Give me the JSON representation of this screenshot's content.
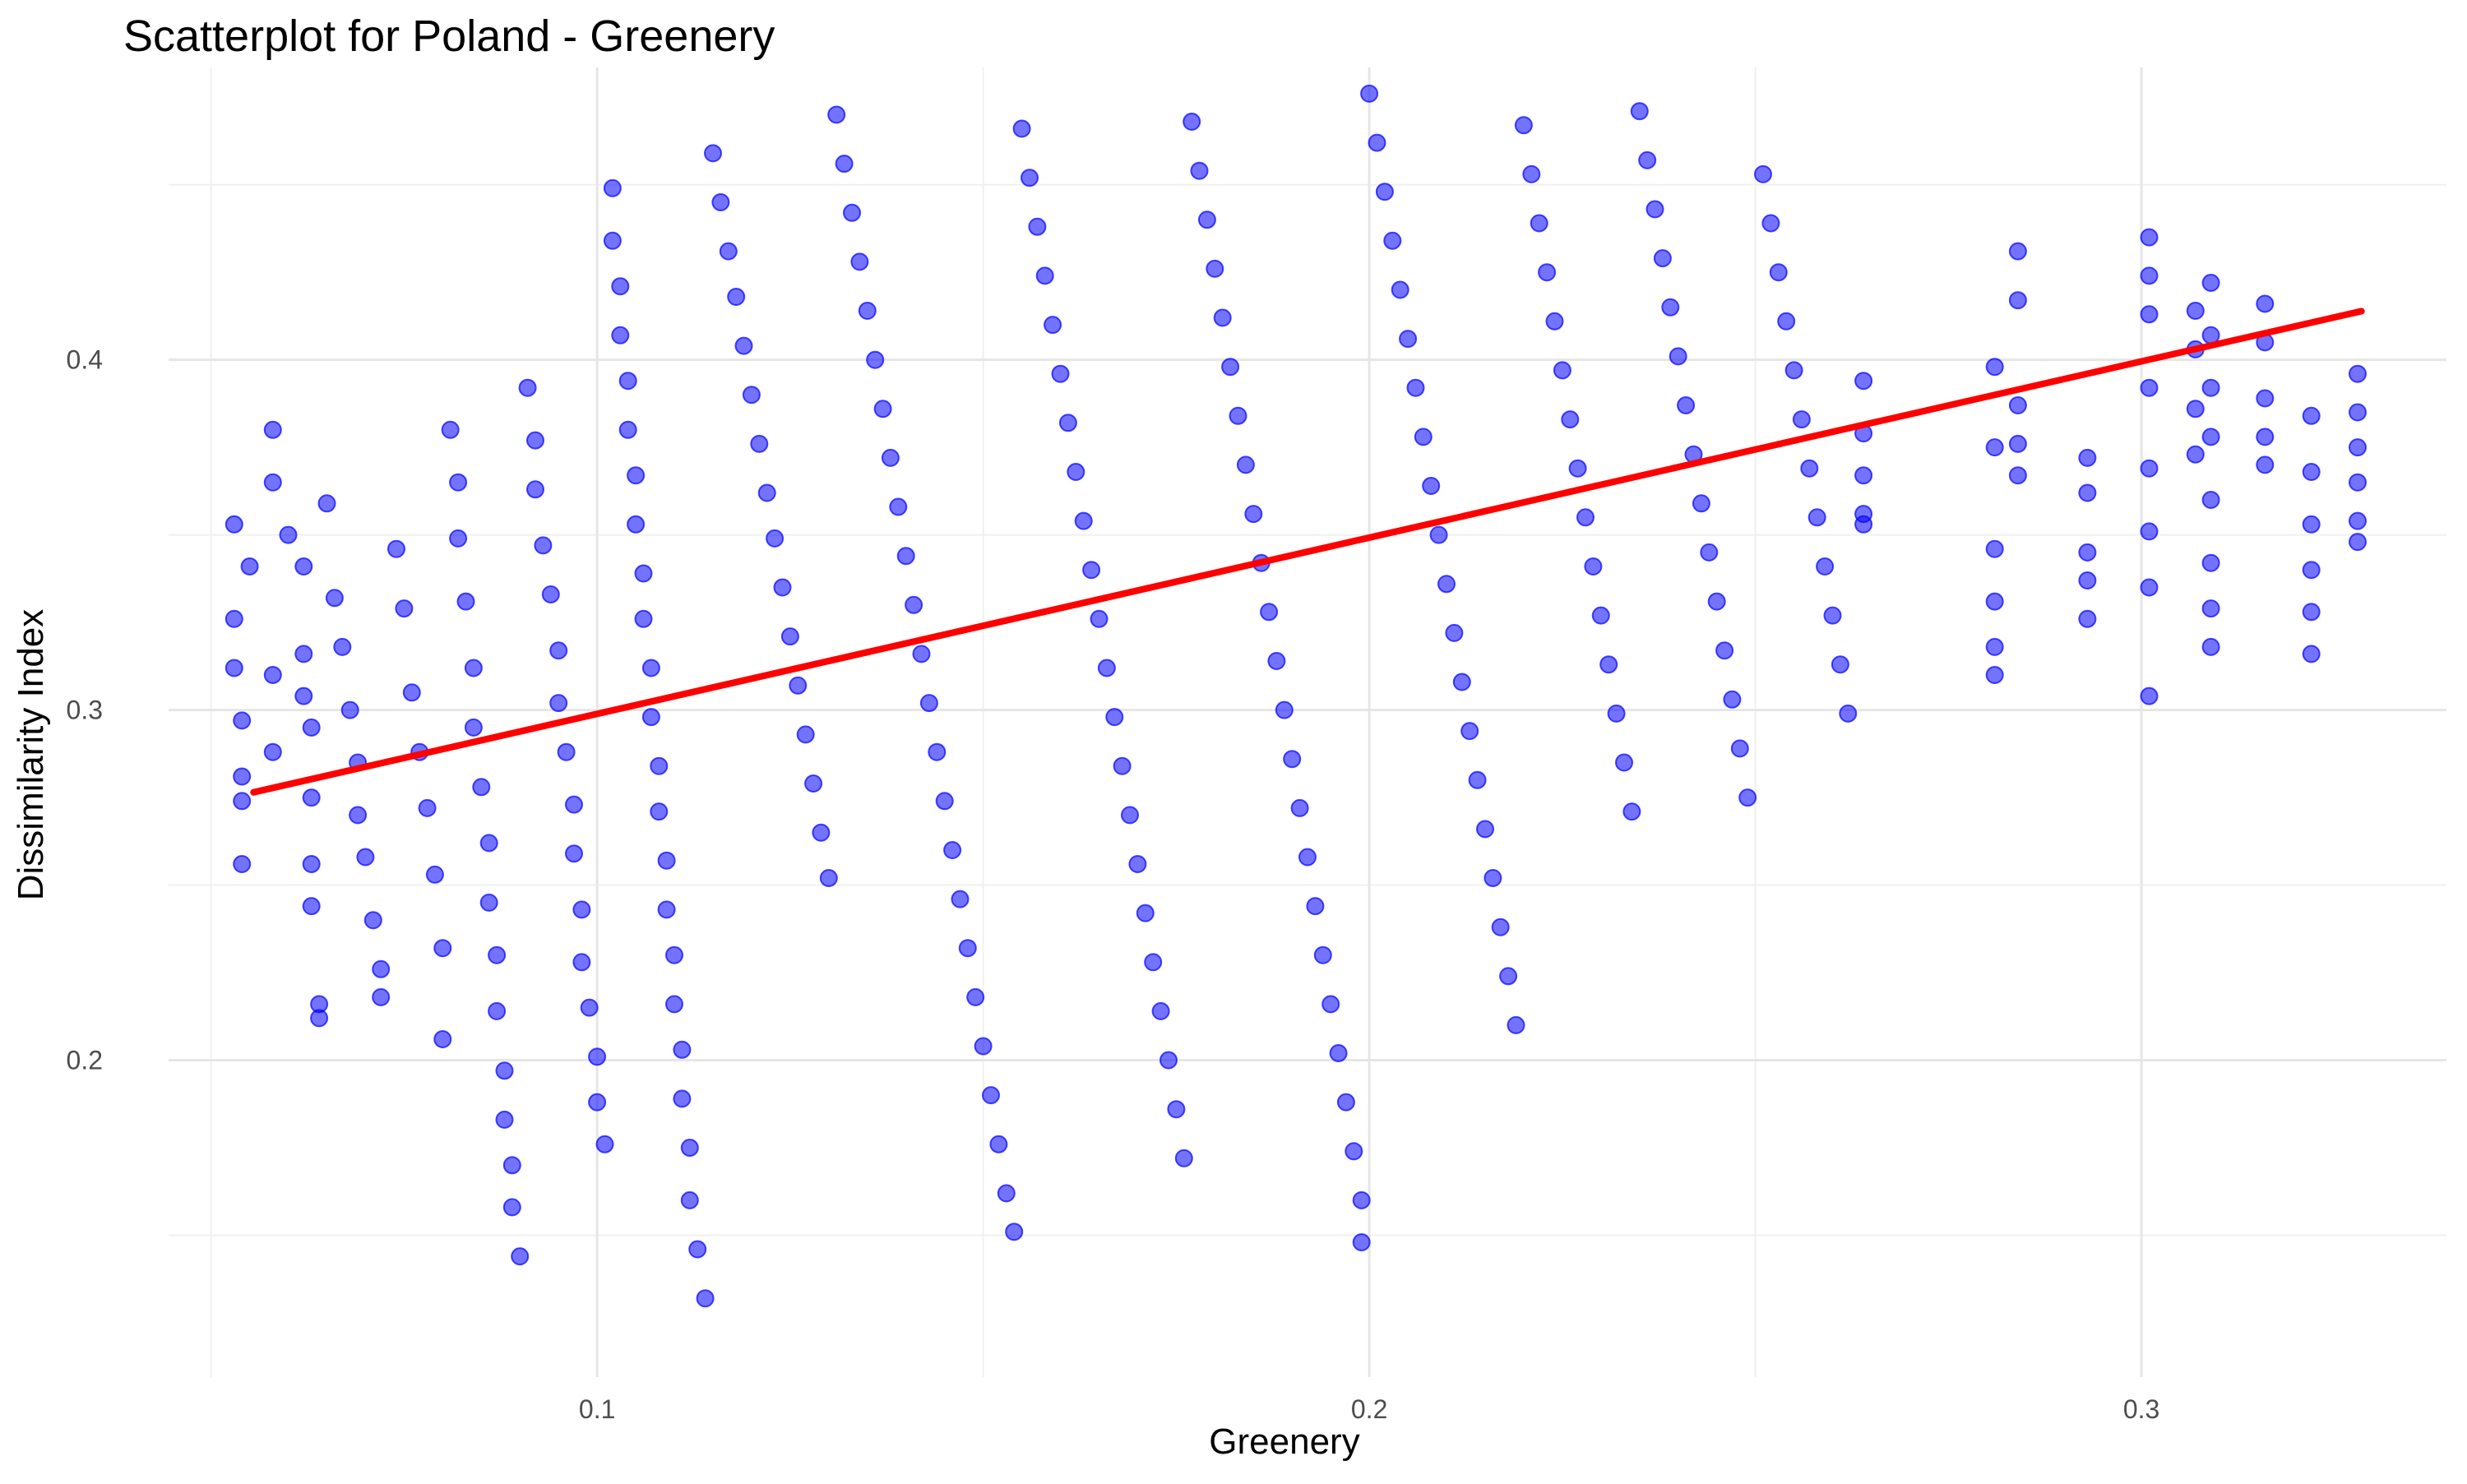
{
  "chart_data": {
    "type": "scatter",
    "title": "Scatterplot for Poland - Greenery",
    "xlabel": "Greenery",
    "ylabel": "Dissimilarity Index",
    "xlim": [
      0.0445,
      0.3395
    ],
    "ylim": [
      0.1095,
      0.4835
    ],
    "x_ticks": [
      0.1,
      0.2,
      0.3
    ],
    "x_tick_labels": [
      "0.1",
      "0.2",
      "0.3"
    ],
    "y_ticks": [
      0.2,
      0.3,
      0.4
    ],
    "y_tick_labels": [
      "0.2",
      "0.3",
      "0.4"
    ],
    "x_minor_ticks": [
      0.05,
      0.15,
      0.25
    ],
    "y_minor_ticks": [
      0.15,
      0.25,
      0.35,
      0.45
    ],
    "grid": true,
    "colors": {
      "points": "#0000ff",
      "trend": "#ff0000",
      "grid": "#e6e6e6"
    },
    "trend_line": {
      "x": [
        0.0555,
        0.3285
      ],
      "y": [
        0.2765,
        0.4139
      ]
    },
    "series": [
      {
        "name": "observations",
        "points": [
          [
            0.053,
            0.353
          ],
          [
            0.053,
            0.326
          ],
          [
            0.053,
            0.312
          ],
          [
            0.054,
            0.297
          ],
          [
            0.054,
            0.281
          ],
          [
            0.054,
            0.256
          ],
          [
            0.054,
            0.274
          ],
          [
            0.055,
            0.341
          ],
          [
            0.058,
            0.38
          ],
          [
            0.058,
            0.365
          ],
          [
            0.058,
            0.31
          ],
          [
            0.058,
            0.288
          ],
          [
            0.06,
            0.35
          ],
          [
            0.062,
            0.341
          ],
          [
            0.062,
            0.316
          ],
          [
            0.062,
            0.304
          ],
          [
            0.063,
            0.295
          ],
          [
            0.063,
            0.275
          ],
          [
            0.063,
            0.256
          ],
          [
            0.063,
            0.244
          ],
          [
            0.064,
            0.216
          ],
          [
            0.064,
            0.212
          ],
          [
            0.065,
            0.359
          ],
          [
            0.066,
            0.332
          ],
          [
            0.067,
            0.318
          ],
          [
            0.068,
            0.3
          ],
          [
            0.069,
            0.285
          ],
          [
            0.069,
            0.27
          ],
          [
            0.07,
            0.258
          ],
          [
            0.071,
            0.24
          ],
          [
            0.072,
            0.226
          ],
          [
            0.072,
            0.218
          ],
          [
            0.074,
            0.346
          ],
          [
            0.075,
            0.329
          ],
          [
            0.076,
            0.305
          ],
          [
            0.077,
            0.288
          ],
          [
            0.078,
            0.272
          ],
          [
            0.079,
            0.253
          ],
          [
            0.08,
            0.232
          ],
          [
            0.08,
            0.206
          ],
          [
            0.081,
            0.38
          ],
          [
            0.082,
            0.365
          ],
          [
            0.082,
            0.349
          ],
          [
            0.083,
            0.331
          ],
          [
            0.084,
            0.312
          ],
          [
            0.084,
            0.295
          ],
          [
            0.085,
            0.278
          ],
          [
            0.086,
            0.262
          ],
          [
            0.086,
            0.245
          ],
          [
            0.087,
            0.23
          ],
          [
            0.087,
            0.214
          ],
          [
            0.088,
            0.197
          ],
          [
            0.088,
            0.183
          ],
          [
            0.089,
            0.17
          ],
          [
            0.089,
            0.158
          ],
          [
            0.09,
            0.144
          ],
          [
            0.091,
            0.392
          ],
          [
            0.092,
            0.377
          ],
          [
            0.092,
            0.363
          ],
          [
            0.093,
            0.347
          ],
          [
            0.094,
            0.333
          ],
          [
            0.095,
            0.317
          ],
          [
            0.095,
            0.302
          ],
          [
            0.096,
            0.288
          ],
          [
            0.097,
            0.273
          ],
          [
            0.097,
            0.259
          ],
          [
            0.098,
            0.243
          ],
          [
            0.098,
            0.228
          ],
          [
            0.099,
            0.215
          ],
          [
            0.1,
            0.201
          ],
          [
            0.1,
            0.188
          ],
          [
            0.101,
            0.176
          ],
          [
            0.102,
            0.449
          ],
          [
            0.102,
            0.434
          ],
          [
            0.103,
            0.421
          ],
          [
            0.103,
            0.407
          ],
          [
            0.104,
            0.394
          ],
          [
            0.104,
            0.38
          ],
          [
            0.105,
            0.367
          ],
          [
            0.105,
            0.353
          ],
          [
            0.106,
            0.339
          ],
          [
            0.106,
            0.326
          ],
          [
            0.107,
            0.312
          ],
          [
            0.107,
            0.298
          ],
          [
            0.108,
            0.284
          ],
          [
            0.108,
            0.271
          ],
          [
            0.109,
            0.257
          ],
          [
            0.109,
            0.243
          ],
          [
            0.11,
            0.23
          ],
          [
            0.11,
            0.216
          ],
          [
            0.111,
            0.203
          ],
          [
            0.111,
            0.189
          ],
          [
            0.112,
            0.175
          ],
          [
            0.112,
            0.16
          ],
          [
            0.113,
            0.146
          ],
          [
            0.114,
            0.132
          ],
          [
            0.115,
            0.459
          ],
          [
            0.116,
            0.445
          ],
          [
            0.117,
            0.431
          ],
          [
            0.118,
            0.418
          ],
          [
            0.119,
            0.404
          ],
          [
            0.12,
            0.39
          ],
          [
            0.121,
            0.376
          ],
          [
            0.122,
            0.362
          ],
          [
            0.123,
            0.349
          ],
          [
            0.124,
            0.335
          ],
          [
            0.125,
            0.321
          ],
          [
            0.126,
            0.307
          ],
          [
            0.127,
            0.293
          ],
          [
            0.128,
            0.279
          ],
          [
            0.129,
            0.265
          ],
          [
            0.13,
            0.252
          ],
          [
            0.131,
            0.47
          ],
          [
            0.132,
            0.456
          ],
          [
            0.133,
            0.442
          ],
          [
            0.134,
            0.428
          ],
          [
            0.135,
            0.414
          ],
          [
            0.136,
            0.4
          ],
          [
            0.137,
            0.386
          ],
          [
            0.138,
            0.372
          ],
          [
            0.139,
            0.358
          ],
          [
            0.14,
            0.344
          ],
          [
            0.141,
            0.33
          ],
          [
            0.142,
            0.316
          ],
          [
            0.143,
            0.302
          ],
          [
            0.144,
            0.288
          ],
          [
            0.145,
            0.274
          ],
          [
            0.146,
            0.26
          ],
          [
            0.147,
            0.246
          ],
          [
            0.148,
            0.232
          ],
          [
            0.149,
            0.218
          ],
          [
            0.15,
            0.204
          ],
          [
            0.151,
            0.19
          ],
          [
            0.152,
            0.176
          ],
          [
            0.153,
            0.162
          ],
          [
            0.154,
            0.151
          ],
          [
            0.155,
            0.466
          ],
          [
            0.156,
            0.452
          ],
          [
            0.157,
            0.438
          ],
          [
            0.158,
            0.424
          ],
          [
            0.159,
            0.41
          ],
          [
            0.16,
            0.396
          ],
          [
            0.161,
            0.382
          ],
          [
            0.162,
            0.368
          ],
          [
            0.163,
            0.354
          ],
          [
            0.164,
            0.34
          ],
          [
            0.165,
            0.326
          ],
          [
            0.166,
            0.312
          ],
          [
            0.167,
            0.298
          ],
          [
            0.168,
            0.284
          ],
          [
            0.169,
            0.27
          ],
          [
            0.17,
            0.256
          ],
          [
            0.171,
            0.242
          ],
          [
            0.172,
            0.228
          ],
          [
            0.173,
            0.214
          ],
          [
            0.174,
            0.2
          ],
          [
            0.175,
            0.186
          ],
          [
            0.176,
            0.172
          ],
          [
            0.177,
            0.468
          ],
          [
            0.178,
            0.454
          ],
          [
            0.179,
            0.44
          ],
          [
            0.18,
            0.426
          ],
          [
            0.181,
            0.412
          ],
          [
            0.182,
            0.398
          ],
          [
            0.183,
            0.384
          ],
          [
            0.184,
            0.37
          ],
          [
            0.185,
            0.356
          ],
          [
            0.186,
            0.342
          ],
          [
            0.187,
            0.328
          ],
          [
            0.188,
            0.314
          ],
          [
            0.189,
            0.3
          ],
          [
            0.19,
            0.286
          ],
          [
            0.191,
            0.272
          ],
          [
            0.192,
            0.258
          ],
          [
            0.193,
            0.244
          ],
          [
            0.194,
            0.23
          ],
          [
            0.195,
            0.216
          ],
          [
            0.196,
            0.202
          ],
          [
            0.197,
            0.188
          ],
          [
            0.198,
            0.174
          ],
          [
            0.199,
            0.16
          ],
          [
            0.199,
            0.148
          ],
          [
            0.2,
            0.476
          ],
          [
            0.201,
            0.462
          ],
          [
            0.202,
            0.448
          ],
          [
            0.203,
            0.434
          ],
          [
            0.204,
            0.42
          ],
          [
            0.205,
            0.406
          ],
          [
            0.206,
            0.392
          ],
          [
            0.207,
            0.378
          ],
          [
            0.208,
            0.364
          ],
          [
            0.209,
            0.35
          ],
          [
            0.21,
            0.336
          ],
          [
            0.211,
            0.322
          ],
          [
            0.212,
            0.308
          ],
          [
            0.213,
            0.294
          ],
          [
            0.214,
            0.28
          ],
          [
            0.215,
            0.266
          ],
          [
            0.216,
            0.252
          ],
          [
            0.217,
            0.238
          ],
          [
            0.218,
            0.224
          ],
          [
            0.219,
            0.21
          ],
          [
            0.22,
            0.467
          ],
          [
            0.221,
            0.453
          ],
          [
            0.222,
            0.439
          ],
          [
            0.223,
            0.425
          ],
          [
            0.224,
            0.411
          ],
          [
            0.225,
            0.397
          ],
          [
            0.226,
            0.383
          ],
          [
            0.227,
            0.369
          ],
          [
            0.228,
            0.355
          ],
          [
            0.229,
            0.341
          ],
          [
            0.23,
            0.327
          ],
          [
            0.231,
            0.313
          ],
          [
            0.232,
            0.299
          ],
          [
            0.233,
            0.285
          ],
          [
            0.234,
            0.271
          ],
          [
            0.235,
            0.471
          ],
          [
            0.236,
            0.457
          ],
          [
            0.237,
            0.443
          ],
          [
            0.238,
            0.429
          ],
          [
            0.239,
            0.415
          ],
          [
            0.24,
            0.401
          ],
          [
            0.241,
            0.387
          ],
          [
            0.242,
            0.373
          ],
          [
            0.243,
            0.359
          ],
          [
            0.244,
            0.345
          ],
          [
            0.245,
            0.331
          ],
          [
            0.246,
            0.317
          ],
          [
            0.247,
            0.303
          ],
          [
            0.248,
            0.289
          ],
          [
            0.249,
            0.275
          ],
          [
            0.251,
            0.453
          ],
          [
            0.252,
            0.439
          ],
          [
            0.253,
            0.425
          ],
          [
            0.254,
            0.411
          ],
          [
            0.255,
            0.397
          ],
          [
            0.256,
            0.383
          ],
          [
            0.257,
            0.369
          ],
          [
            0.258,
            0.355
          ],
          [
            0.259,
            0.341
          ],
          [
            0.26,
            0.327
          ],
          [
            0.261,
            0.313
          ],
          [
            0.262,
            0.299
          ],
          [
            0.264,
            0.394
          ],
          [
            0.264,
            0.379
          ],
          [
            0.264,
            0.367
          ],
          [
            0.264,
            0.356
          ],
          [
            0.264,
            0.353
          ],
          [
            0.281,
            0.398
          ],
          [
            0.281,
            0.375
          ],
          [
            0.281,
            0.346
          ],
          [
            0.281,
            0.331
          ],
          [
            0.281,
            0.318
          ],
          [
            0.281,
            0.31
          ],
          [
            0.284,
            0.431
          ],
          [
            0.284,
            0.417
          ],
          [
            0.284,
            0.387
          ],
          [
            0.284,
            0.376
          ],
          [
            0.284,
            0.367
          ],
          [
            0.293,
            0.372
          ],
          [
            0.293,
            0.362
          ],
          [
            0.293,
            0.345
          ],
          [
            0.293,
            0.337
          ],
          [
            0.293,
            0.326
          ],
          [
            0.301,
            0.435
          ],
          [
            0.301,
            0.424
          ],
          [
            0.301,
            0.413
          ],
          [
            0.301,
            0.392
          ],
          [
            0.301,
            0.369
          ],
          [
            0.301,
            0.351
          ],
          [
            0.301,
            0.335
          ],
          [
            0.301,
            0.304
          ],
          [
            0.307,
            0.414
          ],
          [
            0.307,
            0.403
          ],
          [
            0.307,
            0.386
          ],
          [
            0.307,
            0.373
          ],
          [
            0.309,
            0.422
          ],
          [
            0.309,
            0.407
          ],
          [
            0.309,
            0.392
          ],
          [
            0.309,
            0.378
          ],
          [
            0.309,
            0.36
          ],
          [
            0.309,
            0.342
          ],
          [
            0.309,
            0.329
          ],
          [
            0.309,
            0.318
          ],
          [
            0.316,
            0.416
          ],
          [
            0.316,
            0.405
          ],
          [
            0.316,
            0.389
          ],
          [
            0.316,
            0.378
          ],
          [
            0.316,
            0.37
          ],
          [
            0.322,
            0.384
          ],
          [
            0.322,
            0.368
          ],
          [
            0.322,
            0.353
          ],
          [
            0.322,
            0.34
          ],
          [
            0.322,
            0.328
          ],
          [
            0.322,
            0.316
          ],
          [
            0.328,
            0.396
          ],
          [
            0.328,
            0.385
          ],
          [
            0.328,
            0.375
          ],
          [
            0.328,
            0.365
          ],
          [
            0.328,
            0.354
          ],
          [
            0.328,
            0.348
          ]
        ]
      }
    ]
  }
}
